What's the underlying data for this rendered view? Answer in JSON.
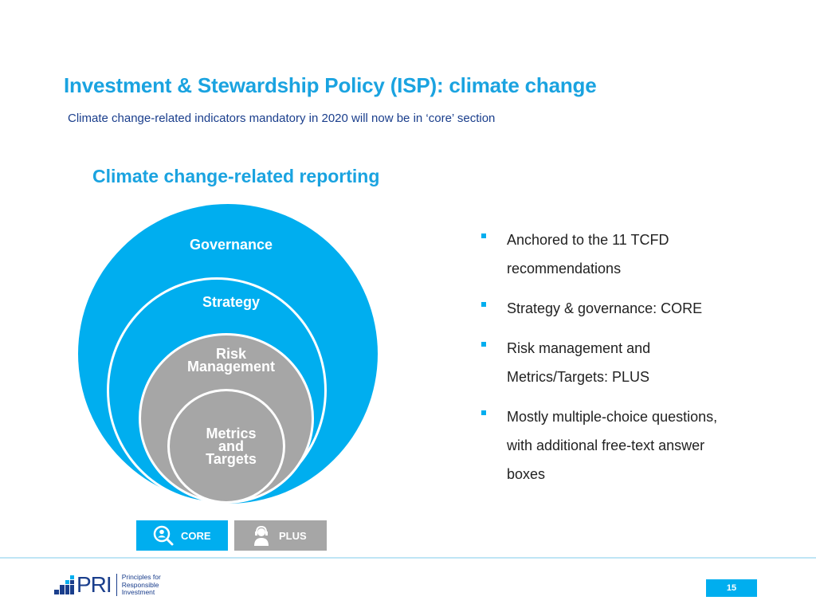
{
  "header": {
    "title": "Investment & Stewardship Policy (ISP): climate change",
    "subtitle": "Climate change-related indicators mandatory in 2020 will now be in ‘core’ section"
  },
  "section": {
    "heading": "Climate change-related reporting"
  },
  "diagram": {
    "rings": [
      {
        "label": "Governance",
        "level": "core",
        "color": "#00aeef"
      },
      {
        "label": "Strategy",
        "level": "core",
        "color": "#00aeef"
      },
      {
        "label": "Risk\nManagement",
        "level": "plus",
        "color": "#a6a6a6"
      },
      {
        "label": "Metrics\nand\nTargets",
        "level": "plus",
        "color": "#a6a6a6"
      }
    ]
  },
  "bullets": [
    "Anchored to the 11 TCFD\nrecommendations",
    "Strategy & governance: CORE",
    "Risk management and\nMetrics/Targets: PLUS",
    "Mostly multiple-choice questions,\nwith additional free-text answer\nboxes"
  ],
  "legend": {
    "core": {
      "label": "CORE",
      "icon": "magnifier-person-icon",
      "color": "#00aeef"
    },
    "plus": {
      "label": "PLUS",
      "icon": "person-headset-icon",
      "color": "#a6a6a6"
    }
  },
  "footer": {
    "logo_text": "PRI",
    "logo_tagline": "Principles for\nResponsible\nInvestment",
    "page_number": "15"
  },
  "colors": {
    "accent": "#00aeef",
    "title": "#1aa3e0",
    "navy": "#1a3e8c",
    "grey": "#a6a6a6"
  }
}
